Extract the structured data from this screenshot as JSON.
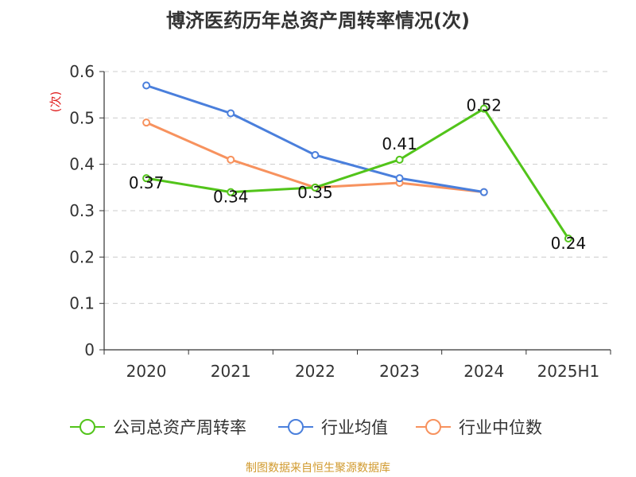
{
  "chart_data": {
    "type": "line",
    "title": "博济医药历年总资产周转率情况(次)",
    "ylabel": "(次)",
    "ylim": [
      0,
      0.6
    ],
    "yticks": [
      "0",
      "0.1",
      "0.2",
      "0.3",
      "0.4",
      "0.5",
      "0.6"
    ],
    "categories": [
      "2020",
      "2021",
      "2022",
      "2023",
      "2024",
      "2025H1"
    ],
    "grid": true,
    "legend_position": "bottom",
    "series": [
      {
        "name": "公司总资产周转率",
        "color": "#52c41a",
        "values": [
          0.37,
          0.34,
          0.35,
          0.41,
          0.52,
          0.24
        ],
        "labels": [
          "0.37",
          "0.34",
          "0.35",
          "0.41",
          "0.52",
          "0.24"
        ]
      },
      {
        "name": "行业均值",
        "color": "#4a7fdc",
        "values": [
          0.57,
          0.51,
          0.42,
          0.37,
          0.34,
          null
        ]
      },
      {
        "name": "行业中位数",
        "color": "#f7925e",
        "values": [
          0.49,
          0.41,
          0.35,
          0.36,
          0.34,
          null
        ]
      }
    ]
  },
  "source": "制图数据来自恒生聚源数据库"
}
